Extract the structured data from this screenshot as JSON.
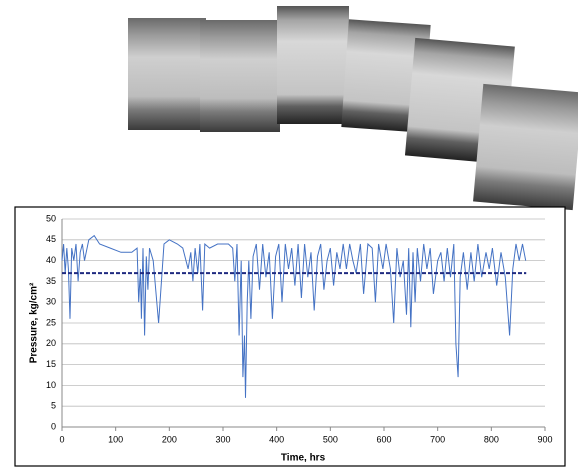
{
  "chart_data": {
    "type": "line",
    "xlabel": "Time, hrs",
    "ylabel": "Pressure, kg/cm²",
    "xlim": [
      0,
      900
    ],
    "xticks": [
      0,
      100,
      200,
      300,
      400,
      500,
      600,
      700,
      800,
      900
    ],
    "ylim": [
      0,
      50
    ],
    "yticks": [
      0,
      5,
      10,
      15,
      20,
      25,
      30,
      35,
      40,
      45,
      50
    ],
    "grid": true,
    "series": [
      {
        "color": "#4472c4",
        "x": [
          0,
          3,
          6,
          9,
          12,
          15,
          18,
          22,
          26,
          30,
          34,
          38,
          42,
          50,
          60,
          70,
          90,
          110,
          130,
          140,
          143,
          146,
          148,
          151,
          154,
          157,
          160,
          163,
          170,
          180,
          190,
          200,
          215,
          225,
          235,
          240,
          244,
          248,
          253,
          257,
          262,
          266,
          275,
          290,
          310,
          318,
          322,
          326,
          330,
          334,
          337,
          340,
          342,
          345,
          348,
          352,
          356,
          362,
          368,
          374,
          380,
          386,
          392,
          398,
          404,
          410,
          416,
          422,
          428,
          434,
          440,
          446,
          452,
          458,
          464,
          470,
          476,
          482,
          488,
          494,
          500,
          506,
          512,
          518,
          524,
          530,
          536,
          542,
          548,
          556,
          562,
          570,
          578,
          584,
          590,
          598,
          604,
          612,
          618,
          624,
          630,
          636,
          642,
          646,
          650,
          654,
          658,
          662,
          668,
          674,
          680,
          686,
          692,
          700,
          706,
          712,
          718,
          724,
          730,
          734,
          738,
          742,
          748,
          755,
          762,
          768,
          775,
          782,
          790,
          796,
          802,
          810,
          818,
          826,
          834,
          840,
          846,
          852,
          858,
          864
        ],
        "values": [
          40,
          44,
          37,
          43,
          38,
          26,
          43,
          40,
          44,
          35,
          42,
          44,
          40,
          45,
          46,
          44,
          43,
          42,
          42,
          43,
          30,
          38,
          26,
          43,
          22,
          41,
          33,
          43,
          40,
          25,
          44,
          45,
          44,
          43,
          38,
          42,
          35,
          43,
          37,
          44,
          28,
          44,
          43,
          44,
          44,
          43,
          35,
          44,
          22,
          40,
          12,
          22,
          7,
          30,
          40,
          26,
          41,
          44,
          33,
          44,
          36,
          42,
          26,
          41,
          44,
          30,
          44,
          38,
          43,
          34,
          44,
          31,
          44,
          36,
          42,
          28,
          41,
          44,
          33,
          40,
          43,
          34,
          42,
          38,
          44,
          38,
          44,
          40,
          37,
          44,
          32,
          44,
          43,
          30,
          44,
          38,
          44,
          38,
          25,
          43,
          36,
          40,
          27,
          43,
          24,
          42,
          30,
          43,
          35,
          44,
          38,
          43,
          32,
          40,
          42,
          35,
          43,
          36,
          44,
          20,
          12,
          36,
          42,
          33,
          42,
          35,
          44,
          36,
          42,
          38,
          43,
          34,
          42,
          36,
          22,
          38,
          44,
          40,
          44,
          40
        ]
      }
    ],
    "mean_line": {
      "color": "#1f2a80",
      "x": [
        0,
        865
      ],
      "values": [
        37,
        37
      ]
    }
  }
}
